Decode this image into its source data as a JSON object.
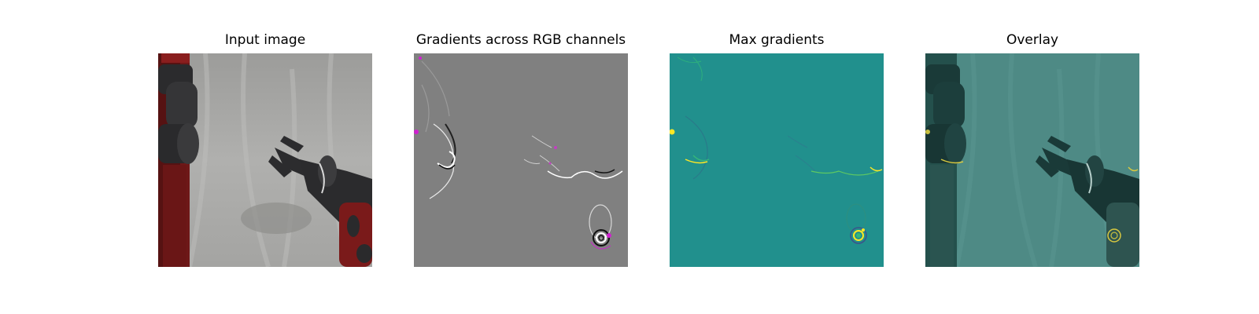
{
  "figure": {
    "panels": [
      {
        "title": "Input image",
        "content": "robot-arm-photo"
      },
      {
        "title": "Gradients across RGB channels",
        "content": "rgb-gradient-map"
      },
      {
        "title": "Max gradients",
        "content": "max-gradient-heatmap"
      },
      {
        "title": "Overlay",
        "content": "gradient-overlay-on-photo"
      }
    ],
    "colors": {
      "background_photo": "#a8a8a6",
      "robot_red": "#7a1a1a",
      "robot_dark": "#2a2a2c",
      "gradient_gray": "#7f7f7f",
      "gradient_magenta": "#d020d0",
      "heatmap_teal": "#21908d",
      "heatmap_yellow": "#fde725",
      "overlay_tint": "#4a8a84"
    }
  }
}
